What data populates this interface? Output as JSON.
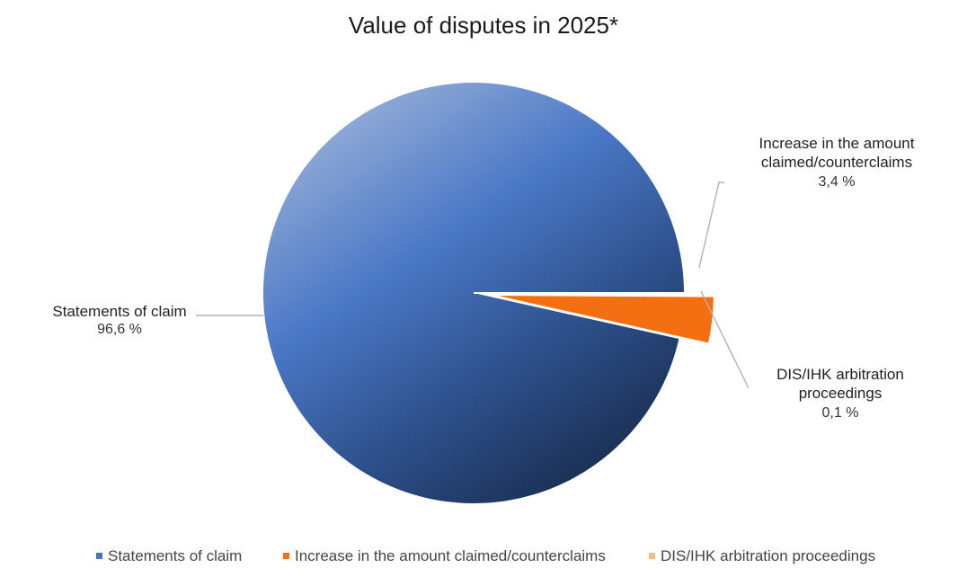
{
  "chart_data": {
    "type": "pie",
    "title": "Value of disputes in 2025*",
    "slices": [
      {
        "label": "Statements of claim",
        "value": 96.6,
        "value_text": "96,6 %",
        "color": "#4a72b8"
      },
      {
        "label": "Increase in the amount claimed/counterclaims",
        "value": 3.4,
        "value_text": "3,4 %",
        "color": "#f36f12"
      },
      {
        "label": "DIS/IHK arbitration proceedings",
        "value": 0.1,
        "value_text": "0,1 %",
        "color": "#f5bb82"
      }
    ],
    "labels": {
      "Statements of claim": [
        "Statements of claim"
      ],
      "Increase in the amount claimed/counterclaims": [
        "Increase in the amount",
        "claimed/counterclaims"
      ],
      "DIS/IHK arbitration proceedings": [
        "DIS/IHK arbitration",
        "proceedings"
      ]
    },
    "legend": {
      "position": "bottom"
    }
  }
}
